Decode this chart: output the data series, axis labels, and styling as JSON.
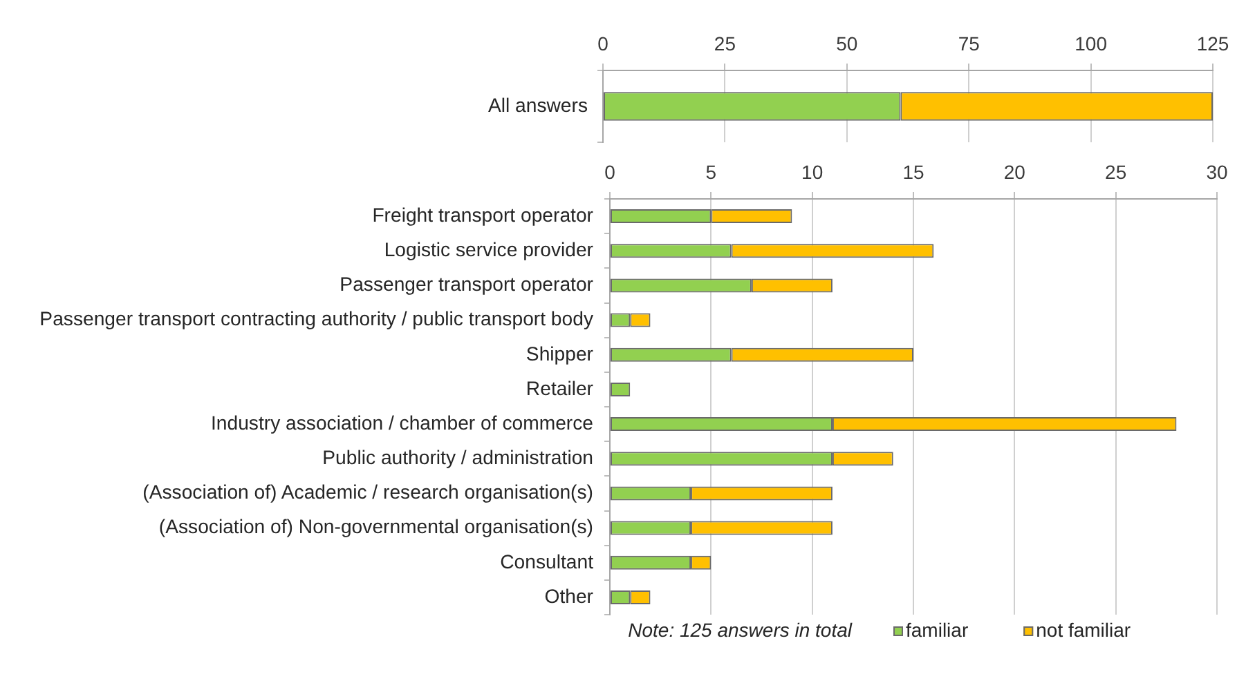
{
  "chart_data": [
    {
      "type": "bar",
      "orientation": "horizontal",
      "stacked": true,
      "categories": [
        "All answers"
      ],
      "series": [
        {
          "color": "#92d050",
          "values": [
            61
          ]
        },
        {
          "color": "#ffc000",
          "values": [
            64
          ]
        }
      ],
      "xlim": [
        0,
        125
      ],
      "xticks": [
        0,
        25,
        50,
        75,
        100,
        125
      ],
      "grid": "x"
    },
    {
      "type": "bar",
      "orientation": "horizontal",
      "stacked": true,
      "categories": [
        "Freight transport operator",
        "Logistic service provider",
        "Passenger transport operator",
        "Passenger transport contracting authority / public transport body",
        "Shipper",
        "Retailer",
        "Industry association / chamber of commerce",
        "Public authority / administration",
        "(Association of) Academic / research organisation(s)",
        "(Association of) Non-governmental organisation(s)",
        "Consultant",
        "Other"
      ],
      "series": [
        {
          "name": "familiar",
          "color": "#92d050",
          "values": [
            5,
            6,
            7,
            1,
            6,
            1,
            11,
            11,
            4,
            4,
            4,
            1
          ]
        },
        {
          "name": "not familiar",
          "color": "#ffc000",
          "values": [
            4,
            10,
            4,
            1,
            9,
            0,
            17,
            3,
            7,
            7,
            1,
            1
          ]
        }
      ],
      "xlim": [
        0,
        30
      ],
      "xticks": [
        0,
        5,
        10,
        15,
        20,
        25,
        30
      ],
      "grid": "x",
      "legend": "bottom",
      "annotations": [
        "Note: 125 answers in total"
      ]
    }
  ]
}
